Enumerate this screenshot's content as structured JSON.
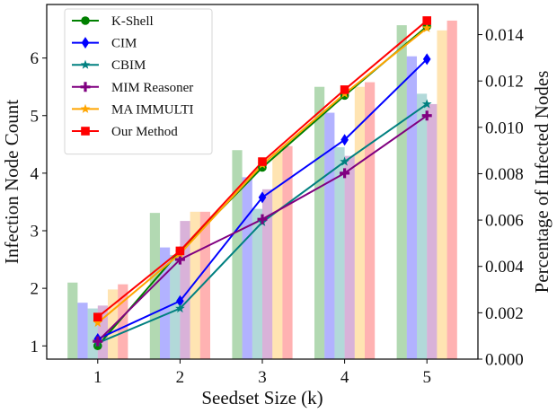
{
  "chart_data": {
    "type": "bar+line",
    "title": "",
    "xlabel": "Seedset Size (k)",
    "ylabel_left": "Infection Node Count",
    "ylabel_right": "Percentage of Infected Nodes",
    "x": [
      1,
      2,
      3,
      4,
      5
    ],
    "x_ticks": [
      "1",
      "2",
      "3",
      "4",
      "5"
    ],
    "xlim": [
      0.38,
      5.62
    ],
    "ylim_left": [
      0.77,
      6.93
    ],
    "ylim_right": [
      0.0,
      0.0153
    ],
    "yticks_left": [
      "1",
      "2",
      "3",
      "4",
      "5",
      "6"
    ],
    "yticks_right": [
      "0.000",
      "0.002",
      "0.004",
      "0.006",
      "0.008",
      "0.010",
      "0.012",
      "0.014"
    ],
    "grid": false,
    "legend_position": "upper left",
    "series": [
      {
        "name": "K-Shell",
        "color": "#008000",
        "marker": "circle",
        "line_values": [
          1.0,
          2.65,
          4.1,
          5.35,
          6.55
        ],
        "bar_values": [
          2.1,
          3.31,
          4.4,
          5.5,
          6.57
        ]
      },
      {
        "name": "CIM",
        "color": "#0000ff",
        "marker": "diamond",
        "line_values": [
          1.12,
          1.78,
          3.58,
          4.58,
          5.98
        ],
        "bar_values": [
          1.75,
          2.71,
          3.93,
          5.05,
          6.03
        ]
      },
      {
        "name": "CBIM",
        "color": "#008080",
        "marker": "star",
        "line_values": [
          1.05,
          1.65,
          3.15,
          4.2,
          5.2
        ],
        "bar_values": [
          1.65,
          2.58,
          3.38,
          4.45,
          5.38
        ]
      },
      {
        "name": "MIM Reasoner",
        "color": "#800080",
        "marker": "plus",
        "line_values": [
          1.08,
          2.5,
          3.2,
          4.0,
          5.0
        ],
        "bar_values": [
          1.7,
          3.17,
          3.72,
          4.3,
          5.2
        ]
      },
      {
        "name": "MA IMMULTI",
        "color": "#ffa500",
        "marker": "star",
        "line_values": [
          1.4,
          2.6,
          4.15,
          5.38,
          6.52
        ],
        "bar_values": [
          1.98,
          3.33,
          4.36,
          5.5,
          6.48
        ]
      },
      {
        "name": "Our Method",
        "color": "#ff0000",
        "marker": "square",
        "line_values": [
          1.5,
          2.65,
          4.2,
          5.45,
          6.65
        ],
        "bar_values": [
          2.07,
          3.33,
          4.47,
          5.58,
          6.65
        ]
      }
    ]
  }
}
